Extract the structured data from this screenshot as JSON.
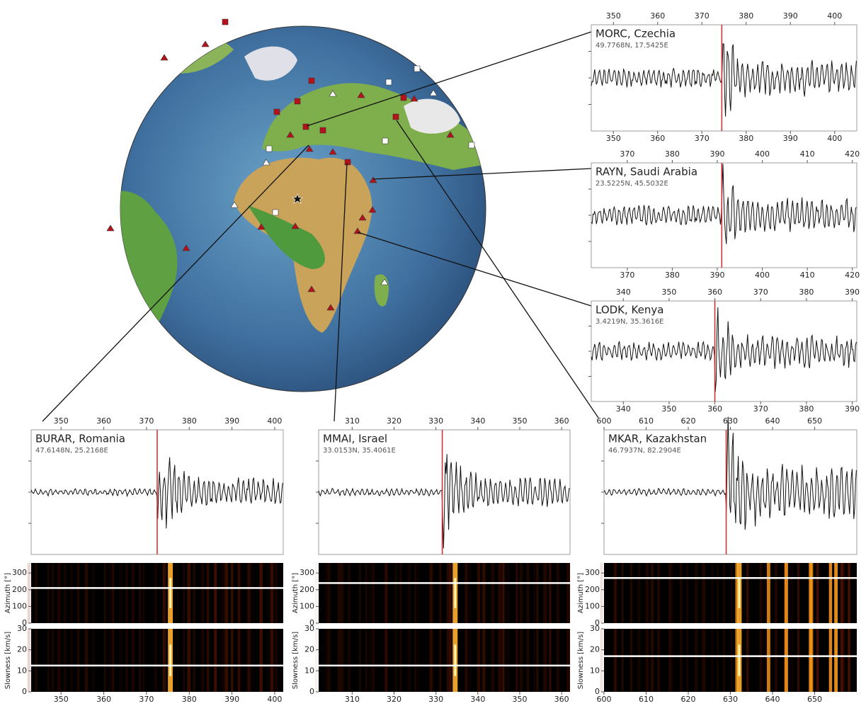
{
  "chart_data": [
    {
      "type": "waveform",
      "station": "MORC, Czechia",
      "coords": "49.7768N, 17.5425E",
      "xlim": [
        345,
        405
      ],
      "xticks": [
        350,
        360,
        370,
        380,
        390,
        400
      ],
      "arrival": 374.5
    },
    {
      "type": "waveform",
      "station": "RAYN, Saudi Arabia",
      "coords": "23.5225N, 45.5032E",
      "xlim": [
        362,
        421
      ],
      "xticks": [
        370,
        380,
        390,
        400,
        410,
        420
      ],
      "arrival": 391
    },
    {
      "type": "waveform",
      "station": "LODK, Kenya",
      "coords": "3.4219N, 35.3616E",
      "xlim": [
        333,
        391
      ],
      "xticks": [
        340,
        350,
        360,
        370,
        380,
        390
      ],
      "arrival": 360
    },
    {
      "type": "waveform",
      "station": "BURAR, Romania",
      "coords": "47.6148N, 25.2168E",
      "xlim": [
        343,
        402
      ],
      "xticks": [
        350,
        360,
        370,
        380,
        390,
        400
      ],
      "arrival": 372.5,
      "azimuth": {
        "label": "Azimuth [°]",
        "ylim": [
          0,
          360
        ],
        "yticks": [
          0,
          100,
          200,
          300
        ],
        "value": 210
      },
      "slowness": {
        "label": "Slowness [km/s]",
        "ylim": [
          0,
          30
        ],
        "yticks": [
          0,
          10,
          20,
          30
        ],
        "value": 12.5
      }
    },
    {
      "type": "waveform",
      "station": "MMAI, Israel",
      "coords": "33.0153N, 35.4061E",
      "xlim": [
        302,
        362
      ],
      "xticks": [
        310,
        320,
        330,
        340,
        350,
        360
      ],
      "arrival": 331.5,
      "azimuth": {
        "label": "Azimuth [°]",
        "ylim": [
          0,
          360
        ],
        "yticks": [
          0,
          100,
          200,
          300
        ],
        "value": 240
      },
      "slowness": {
        "label": "Slowness [km/s]",
        "ylim": [
          0,
          30
        ],
        "yticks": [
          0,
          10,
          20,
          30
        ],
        "value": 12.5
      }
    },
    {
      "type": "waveform",
      "station": "MKAR, Kazakhstan",
      "coords": "46.7937N, 82.2904E",
      "xlim": [
        600,
        660
      ],
      "xticks": [
        600,
        610,
        620,
        630,
        640,
        650
      ],
      "arrival": 629,
      "azimuth": {
        "label": "Azimuth [°]",
        "ylim": [
          0,
          360
        ],
        "yticks": [
          0,
          100,
          200,
          300
        ],
        "value": 270
      },
      "slowness": {
        "label": "Slowness [km/s]",
        "ylim": [
          0,
          30
        ],
        "yticks": [
          0,
          10,
          20,
          30
        ],
        "value": 17
      }
    }
  ]
}
